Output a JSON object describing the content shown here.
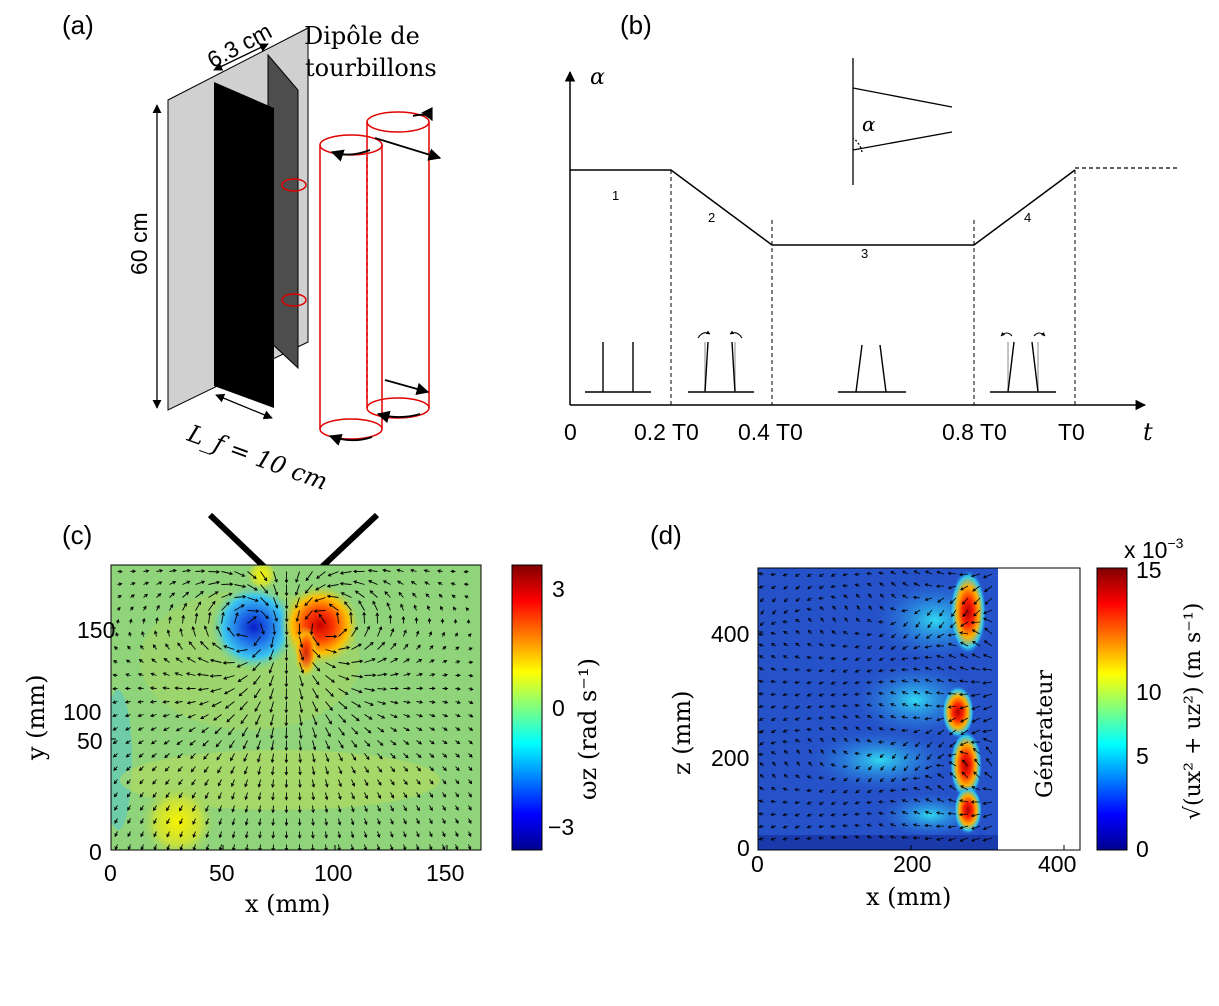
{
  "panels": {
    "a": {
      "label": "(a)",
      "dim_width": "6.3 cm",
      "dim_height": "60 cm",
      "dim_length": "L_f = 10 cm",
      "dipole_title_line1": "Dipôle de",
      "dipole_title_line2": "tourbillons"
    },
    "b": {
      "label": "(b)",
      "y_axis_label": "α",
      "x_axis_label": "t",
      "inset_angle_label": "α",
      "phase_labels": [
        "1",
        "2",
        "3",
        "4"
      ],
      "time_ticks": [
        "0",
        "0.2 T0",
        "0.4 T0",
        "0.8 T0",
        "T0"
      ],
      "profile": [
        {
          "t": 0.0,
          "alpha": 1.0
        },
        {
          "t": 0.2,
          "alpha": 1.0
        },
        {
          "t": 0.4,
          "alpha": 0.5
        },
        {
          "t": 0.8,
          "alpha": 0.5
        },
        {
          "t": 1.0,
          "alpha": 1.0
        }
      ]
    },
    "c": {
      "label": "(c)",
      "xlabel": "x (mm)",
      "ylabel": "y (mm)",
      "xticks": [
        "0",
        "50",
        "100",
        "150"
      ],
      "yticks": [
        "0",
        "50",
        "100",
        "150"
      ],
      "xlim": [
        0,
        165
      ],
      "ylim": [
        0,
        165
      ],
      "colorbar_label": "ωz (rad s⁻¹)",
      "colorbar_ticks": [
        "3",
        "0",
        "−3"
      ],
      "colorbar_range": [
        -3.5,
        3.5
      ],
      "colormap": "jet"
    },
    "d": {
      "label": "(d)",
      "xlabel": "x (mm)",
      "ylabel": "z (mm)",
      "xticks": [
        "0",
        "200",
        "400"
      ],
      "yticks": [
        "0",
        "200",
        "400"
      ],
      "xlim": [
        0,
        420
      ],
      "ylim": [
        0,
        480
      ],
      "generator_label": "Générateur",
      "colorbar_exponent": "x 10",
      "colorbar_exponent_power": "−3",
      "colorbar_label": "√(ux² + uz²) (m s⁻¹)",
      "colorbar_ticks": [
        "15",
        "10",
        "5",
        "0"
      ],
      "colorbar_range": [
        0,
        15
      ],
      "colormap": "jet"
    }
  },
  "chart_data": [
    {
      "type": "line",
      "title": "",
      "xlabel": "t",
      "ylabel": "α",
      "x": [
        0,
        0.2,
        0.4,
        0.8,
        1.0
      ],
      "y": [
        1.0,
        1.0,
        0.5,
        0.5,
        1.0
      ],
      "tick_labels": [
        "0",
        "0.2 T0",
        "0.4 T0",
        "0.8 T0",
        "T0"
      ]
    },
    {
      "type": "heatmap",
      "xlabel": "x (mm)",
      "ylabel": "y (mm)",
      "xlim": [
        0,
        165
      ],
      "ylim": [
        0,
        165
      ],
      "zlabel": "ωz (rad s⁻¹)",
      "zlim": [
        -3.5,
        3.5
      ],
      "features": [
        {
          "x": 65,
          "y": 145,
          "value": -3.2
        },
        {
          "x": 97,
          "y": 143,
          "value": 3.3
        },
        {
          "x": 30,
          "y": 15,
          "value": 1.2
        }
      ]
    },
    {
      "type": "heatmap",
      "xlabel": "x (mm)",
      "ylabel": "z (mm)",
      "xlim": [
        0,
        420
      ],
      "ylim": [
        0,
        480
      ],
      "zlabel": "√(ux² + uz²) (m s⁻¹)",
      "zlim": [
        0,
        0.015
      ],
      "features": [
        {
          "x": 275,
          "z": 405,
          "value": 0.015
        },
        {
          "x": 265,
          "z": 290,
          "value": 0.012
        },
        {
          "x": 272,
          "z": 180,
          "value": 0.014
        },
        {
          "x": 275,
          "z": 110,
          "value": 0.013
        }
      ]
    }
  ]
}
